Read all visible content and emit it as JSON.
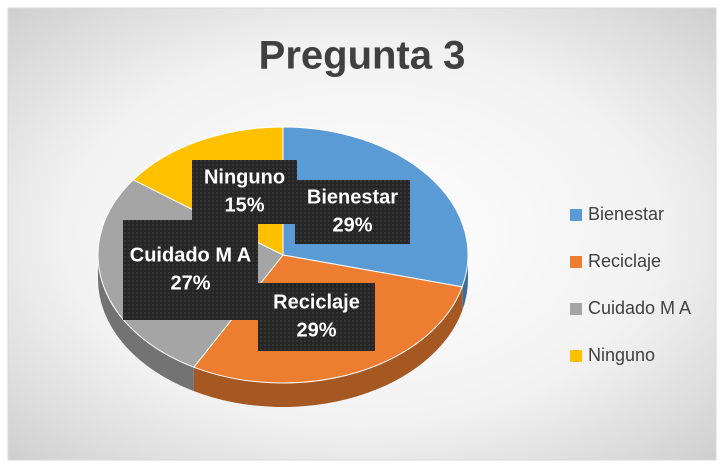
{
  "chart_data": {
    "type": "pie",
    "title": "Pregunta 3",
    "categories": [
      "Bienestar",
      "Reciclaje",
      "Cuidado M A",
      "Ninguno"
    ],
    "values": [
      29,
      29,
      27,
      15
    ],
    "value_labels": [
      "29%",
      "29%",
      "27%",
      "15%"
    ],
    "colors": [
      "#5b9bd5",
      "#ed7d31",
      "#a5a5a5",
      "#ffc000"
    ],
    "legend": "right"
  }
}
